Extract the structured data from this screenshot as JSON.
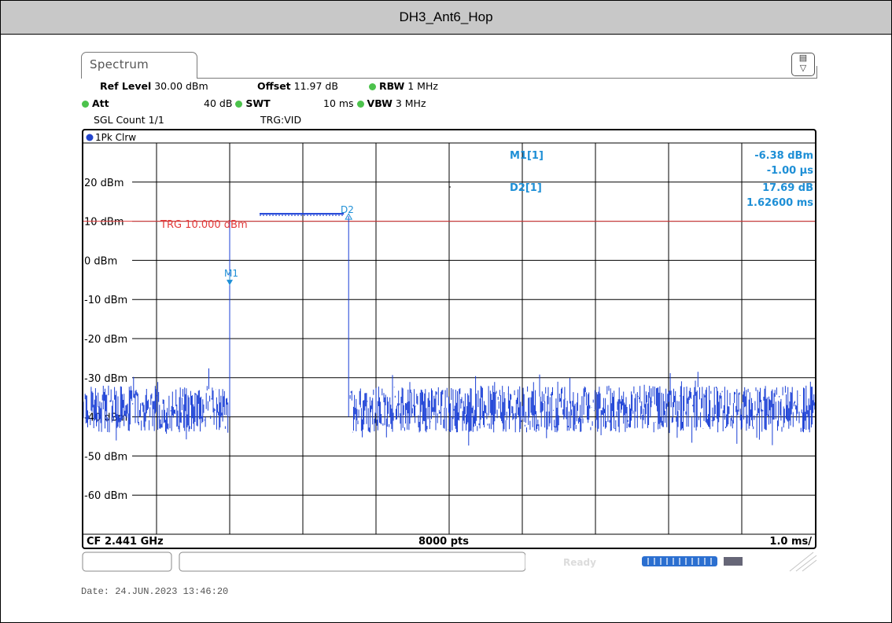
{
  "page_title": "DH3_Ant6_Hop",
  "tab_label": "Spectrum",
  "settings": {
    "ref_level_label": "Ref Level",
    "ref_level_value": "30.00 dBm",
    "offset_label": "Offset",
    "offset_value": "11.97 dB",
    "rbw_label": "RBW",
    "rbw_value": "1 MHz",
    "att_label": "Att",
    "att_value": "40 dB",
    "swt_label": "SWT",
    "swt_value": "10 ms",
    "vbw_label": "VBW",
    "vbw_value": "3 MHz",
    "sgl_count": "SGL Count 1/1",
    "trg": "TRG:VID"
  },
  "trace_label": "1Pk Clrw",
  "markers": {
    "m1_name": "M1[1]",
    "m1_value": "-6.38 dBm",
    "m1_time": "-1.00 µs",
    "d2_name": "D2[1]",
    "d2_value": "17.69 dB",
    "d2_time": "1.62600 ms",
    "m1_tag": "M1",
    "d2_tag": "D2"
  },
  "footer": {
    "cf": "CF 2.441 GHz",
    "pts": "8000 pts",
    "span": "1.0 ms/"
  },
  "status": {
    "ready": "Ready"
  },
  "date": "Date: 24.JUN.2023  13:46:20",
  "colors": {
    "trace": "#1a3fd6",
    "trigger_line": "#e23b3b",
    "marker": "#1e8fd6",
    "grid": "#000000"
  },
  "chart_data": {
    "type": "line",
    "xlabel": "",
    "ylabel": "",
    "x_divisions": 10,
    "x_per_div_ms": 1.0,
    "xlim_ms": [
      0,
      10
    ],
    "ylim": [
      -70,
      30
    ],
    "y_ticks": [
      20,
      10,
      0,
      -10,
      -20,
      -30,
      -40,
      -50,
      -60
    ],
    "y_tick_labels": [
      "20 dBm",
      "10 dBm",
      "0 dBm",
      "-10 dBm",
      "-20 dBm",
      "-30 dBm",
      "-40 dBm",
      "-50 dBm",
      "-60 dBm"
    ],
    "trigger_level_dbm": 10.0,
    "trigger_label": "TRG  10.000 dBm",
    "noise_floor_range_dbm": [
      -44,
      -32
    ],
    "burst": {
      "start_ms": 2.0,
      "end_ms": 3.626,
      "level_dbm": 11.5
    },
    "marker_m1": {
      "x_ms": 2.0,
      "y_dbm": -6.38
    },
    "marker_d2": {
      "x_ms": 3.626,
      "y_dbm": 11.31
    },
    "grid": true
  }
}
